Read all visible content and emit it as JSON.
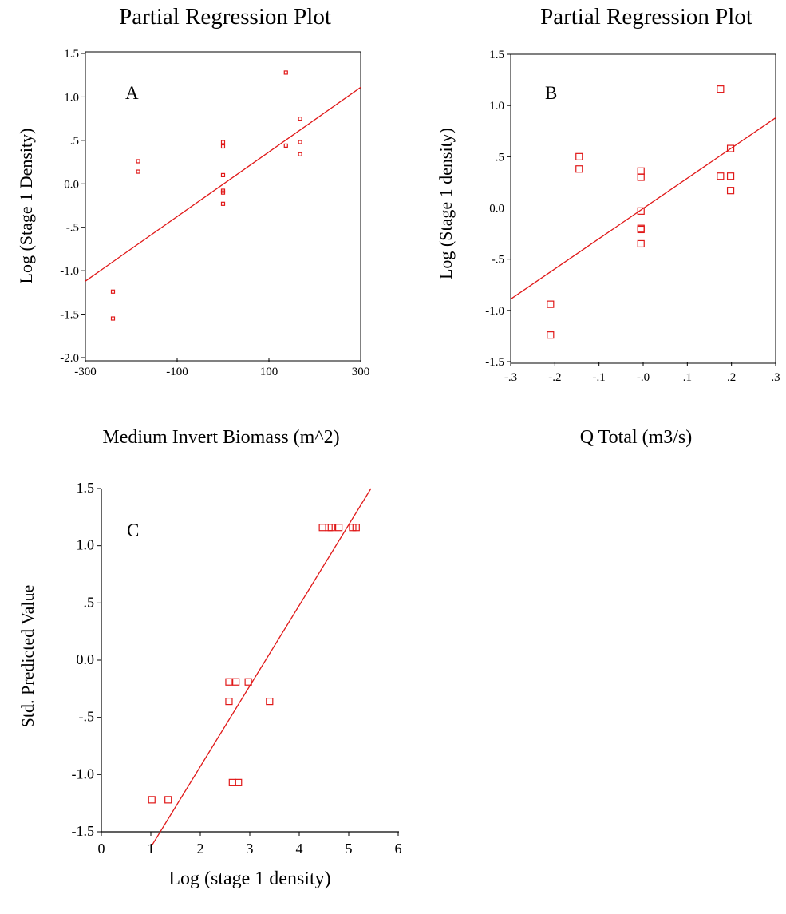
{
  "chart_data": [
    {
      "type": "scatter",
      "panel_label": "A",
      "title": "Partial Regression Plot",
      "xlabel": "Medium Invert Biomass (m^2)",
      "ylabel": "Log (Stage 1 Density)",
      "xlim": [
        -300,
        300
      ],
      "ylim": [
        -2.0,
        1.5
      ],
      "x_ticks": [
        -300,
        -100,
        100,
        300
      ],
      "x_tick_labels": [
        "-300",
        "-100",
        "100",
        "300"
      ],
      "y_ticks": [
        1.5,
        1.0,
        0.5,
        0.0,
        -0.5,
        -1.0,
        -1.5,
        -2.0
      ],
      "y_tick_labels": [
        "1.5",
        "1.0",
        ".5",
        "0.0",
        "-.5",
        "-1.0",
        "-1.5",
        "-2.0"
      ],
      "grid": false,
      "points": [
        {
          "x": -240,
          "y": -1.24
        },
        {
          "x": -240,
          "y": -1.55
        },
        {
          "x": -185,
          "y": 0.26
        },
        {
          "x": -185,
          "y": 0.14
        },
        {
          "x": 0,
          "y": 0.48
        },
        {
          "x": 0,
          "y": 0.43
        },
        {
          "x": 0,
          "y": 0.1
        },
        {
          "x": 0,
          "y": -0.08
        },
        {
          "x": 0,
          "y": -0.1
        },
        {
          "x": 0,
          "y": -0.23
        },
        {
          "x": 137,
          "y": 1.28
        },
        {
          "x": 137,
          "y": 0.44
        },
        {
          "x": 168,
          "y": 0.75
        },
        {
          "x": 168,
          "y": 0.48
        },
        {
          "x": 168,
          "y": 0.34
        }
      ],
      "fit_line": [
        {
          "x": -300,
          "y": -1.12
        },
        {
          "x": 300,
          "y": 1.11
        }
      ]
    },
    {
      "type": "scatter",
      "panel_label": "B",
      "title": "Partial Regression Plot",
      "xlabel": "Q Total (m3/s)",
      "ylabel": "Log (Stage 1 density)",
      "xlim": [
        -0.3,
        0.3
      ],
      "ylim": [
        -1.5,
        1.5
      ],
      "x_ticks": [
        -0.3,
        -0.2,
        -0.1,
        0.0,
        0.1,
        0.2,
        0.3
      ],
      "x_tick_labels": [
        "-.3",
        "-.2",
        "-.1",
        "-.0",
        ".1",
        ".2",
        ".3"
      ],
      "y_ticks": [
        1.5,
        1.0,
        0.5,
        0.0,
        -0.5,
        -1.0,
        -1.5
      ],
      "y_tick_labels": [
        "1.5",
        "1.0",
        ".5",
        "0.0",
        "-.5",
        "-1.0",
        "-1.5"
      ],
      "grid": false,
      "points": [
        {
          "x": -0.21,
          "y": -0.94
        },
        {
          "x": -0.21,
          "y": -1.24
        },
        {
          "x": -0.145,
          "y": 0.5
        },
        {
          "x": -0.145,
          "y": 0.38
        },
        {
          "x": -0.005,
          "y": 0.36
        },
        {
          "x": -0.005,
          "y": 0.3
        },
        {
          "x": -0.005,
          "y": -0.03
        },
        {
          "x": -0.005,
          "y": -0.2
        },
        {
          "x": -0.005,
          "y": -0.21
        },
        {
          "x": -0.005,
          "y": -0.35
        },
        {
          "x": 0.175,
          "y": 1.16
        },
        {
          "x": 0.175,
          "y": 0.31
        },
        {
          "x": 0.198,
          "y": 0.58
        },
        {
          "x": 0.198,
          "y": 0.31
        },
        {
          "x": 0.198,
          "y": 0.17
        }
      ],
      "fit_line": [
        {
          "x": -0.3,
          "y": -0.89
        },
        {
          "x": 0.3,
          "y": 0.88
        }
      ]
    },
    {
      "type": "scatter",
      "panel_label": "C",
      "title": "",
      "xlabel": "Log (stage 1 density)",
      "ylabel": "Std. Predicted Value",
      "xlim": [
        0,
        6
      ],
      "ylim": [
        -1.5,
        1.5
      ],
      "x_ticks": [
        0,
        1,
        2,
        3,
        4,
        5,
        6
      ],
      "x_tick_labels": [
        "0",
        "1",
        "2",
        "3",
        "4",
        "5",
        "6"
      ],
      "y_ticks": [
        1.5,
        1.0,
        0.5,
        0.0,
        -0.5,
        -1.0,
        -1.5
      ],
      "y_tick_labels": [
        "1.5",
        "1.0",
        ".5",
        "0.0",
        "-.5",
        "-1.0",
        "-1.5"
      ],
      "grid": false,
      "points": [
        {
          "x": 1.02,
          "y": -1.22
        },
        {
          "x": 1.35,
          "y": -1.22
        },
        {
          "x": 2.58,
          "y": -0.19
        },
        {
          "x": 2.72,
          "y": -0.19
        },
        {
          "x": 2.97,
          "y": -0.19
        },
        {
          "x": 2.58,
          "y": -0.36
        },
        {
          "x": 3.4,
          "y": -0.36
        },
        {
          "x": 2.65,
          "y": -1.07
        },
        {
          "x": 2.77,
          "y": -1.07
        },
        {
          "x": 4.47,
          "y": 1.16
        },
        {
          "x": 4.6,
          "y": 1.16
        },
        {
          "x": 4.65,
          "y": 1.16
        },
        {
          "x": 4.8,
          "y": 1.16
        },
        {
          "x": 5.08,
          "y": 1.16
        },
        {
          "x": 5.15,
          "y": 1.16
        }
      ],
      "fit_line": [
        {
          "x": 1.02,
          "y": -1.62
        },
        {
          "x": 5.45,
          "y": 1.5
        }
      ]
    }
  ]
}
